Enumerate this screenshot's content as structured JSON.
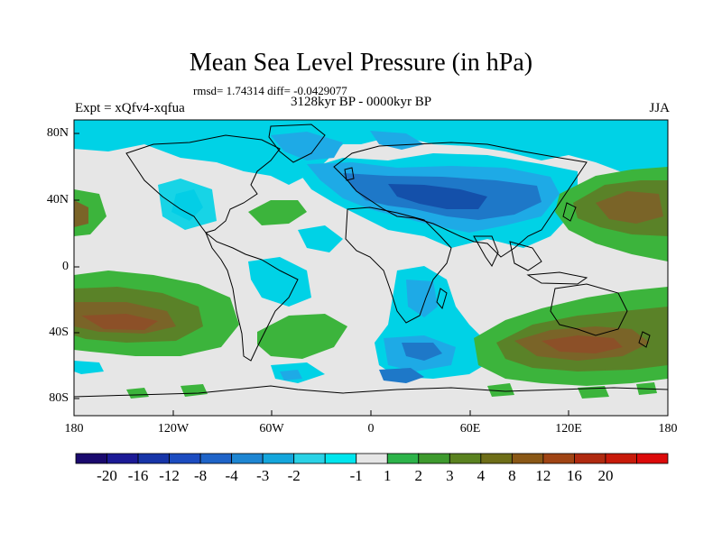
{
  "header": {
    "title": "Mean Sea Level Pressure (in hPa)",
    "stats": "rmsd= 1.74314 diff= -0.0429077",
    "expt": "Expt = xQfv4-xqfua",
    "period": "3128kyr BP - 0000kyr BP",
    "season": "JJA"
  },
  "axes": {
    "x_ticks": [
      "180",
      "120W",
      "60W",
      "0",
      "60E",
      "120E",
      "180"
    ],
    "y_ticks": [
      "80N",
      "40N",
      "0",
      "40S",
      "80S"
    ]
  },
  "colorbar": {
    "labels": [
      "-20",
      "-16",
      "-12",
      "-8",
      "-4",
      "-3",
      "-2",
      "-1",
      "1",
      "2",
      "3",
      "4",
      "8",
      "12",
      "16",
      "20"
    ],
    "colors": [
      "#1a0a6e",
      "#1c1a96",
      "#1735a8",
      "#1c4cc0",
      "#1f64c8",
      "#1e86d2",
      "#14a6dc",
      "#2ad2e6",
      "#00e6ee",
      "#e6e6e6",
      "#2db34a",
      "#3e9a2e",
      "#5a8220",
      "#6e6e18",
      "#8a5816",
      "#a04414",
      "#b02a10",
      "#c81a0a",
      "#dc0a0a"
    ]
  },
  "palette": {
    "neutral": "#e6e6e6",
    "cyan": "#00d2e6",
    "mid_blue": "#1eaae6",
    "blue": "#1e78c8",
    "dark_blue": "#1450aa",
    "green": "#3cb43c",
    "olive": "#5a8228",
    "brown": "#7a6428",
    "dark_brown": "#8c5028"
  }
}
